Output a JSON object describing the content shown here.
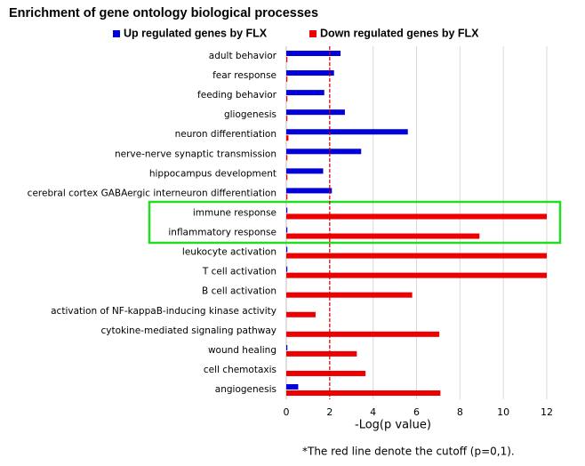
{
  "chart_data": {
    "type": "bar",
    "orientation": "horizontal",
    "title": "Enrichment of gene ontology biological processes",
    "x_label": "-Log(p value)",
    "footnote": "*The red line denote the cutoff (p=0,1).",
    "categories": [
      "adult behavior",
      "fear response",
      "feeding behavior",
      "gliogenesis",
      "neuron differentiation",
      "nerve-nerve synaptic transmission",
      "hippocampus development",
      "cerebral cortex GABAergic interneuron differentiation",
      "immune response",
      "inflammatory response",
      "leukocyte activation",
      "T cell activation",
      "B cell activation",
      "activation of NF-kappaB-inducing kinase activity",
      "cytokine-mediated signaling pathway",
      "wound healing",
      "cell chemotaxis",
      "angiogenesis"
    ],
    "series": [
      {
        "name": "Up regulated genes by FLX",
        "color": "#0000dd",
        "values": [
          2.5,
          2.2,
          1.75,
          2.7,
          5.6,
          3.45,
          1.7,
          2.1,
          0.05,
          0.05,
          0.05,
          0.05,
          0,
          0,
          0,
          0.05,
          0,
          0.55
        ]
      },
      {
        "name": "Down regulated genes by FLX",
        "color": "#ee0000",
        "values": [
          0.05,
          0.05,
          0.05,
          0.05,
          0.1,
          0.05,
          0.05,
          0.05,
          12,
          8.9,
          12,
          12,
          5.8,
          1.35,
          7.05,
          3.25,
          3.65,
          7.1
        ]
      }
    ],
    "xlim": [
      0,
      12.6
    ],
    "xticks": [
      0,
      2,
      4,
      6,
      8,
      10,
      12
    ],
    "grid": true,
    "legend": "top",
    "reference_line": {
      "value": 2,
      "color": "#cc0000"
    }
  }
}
